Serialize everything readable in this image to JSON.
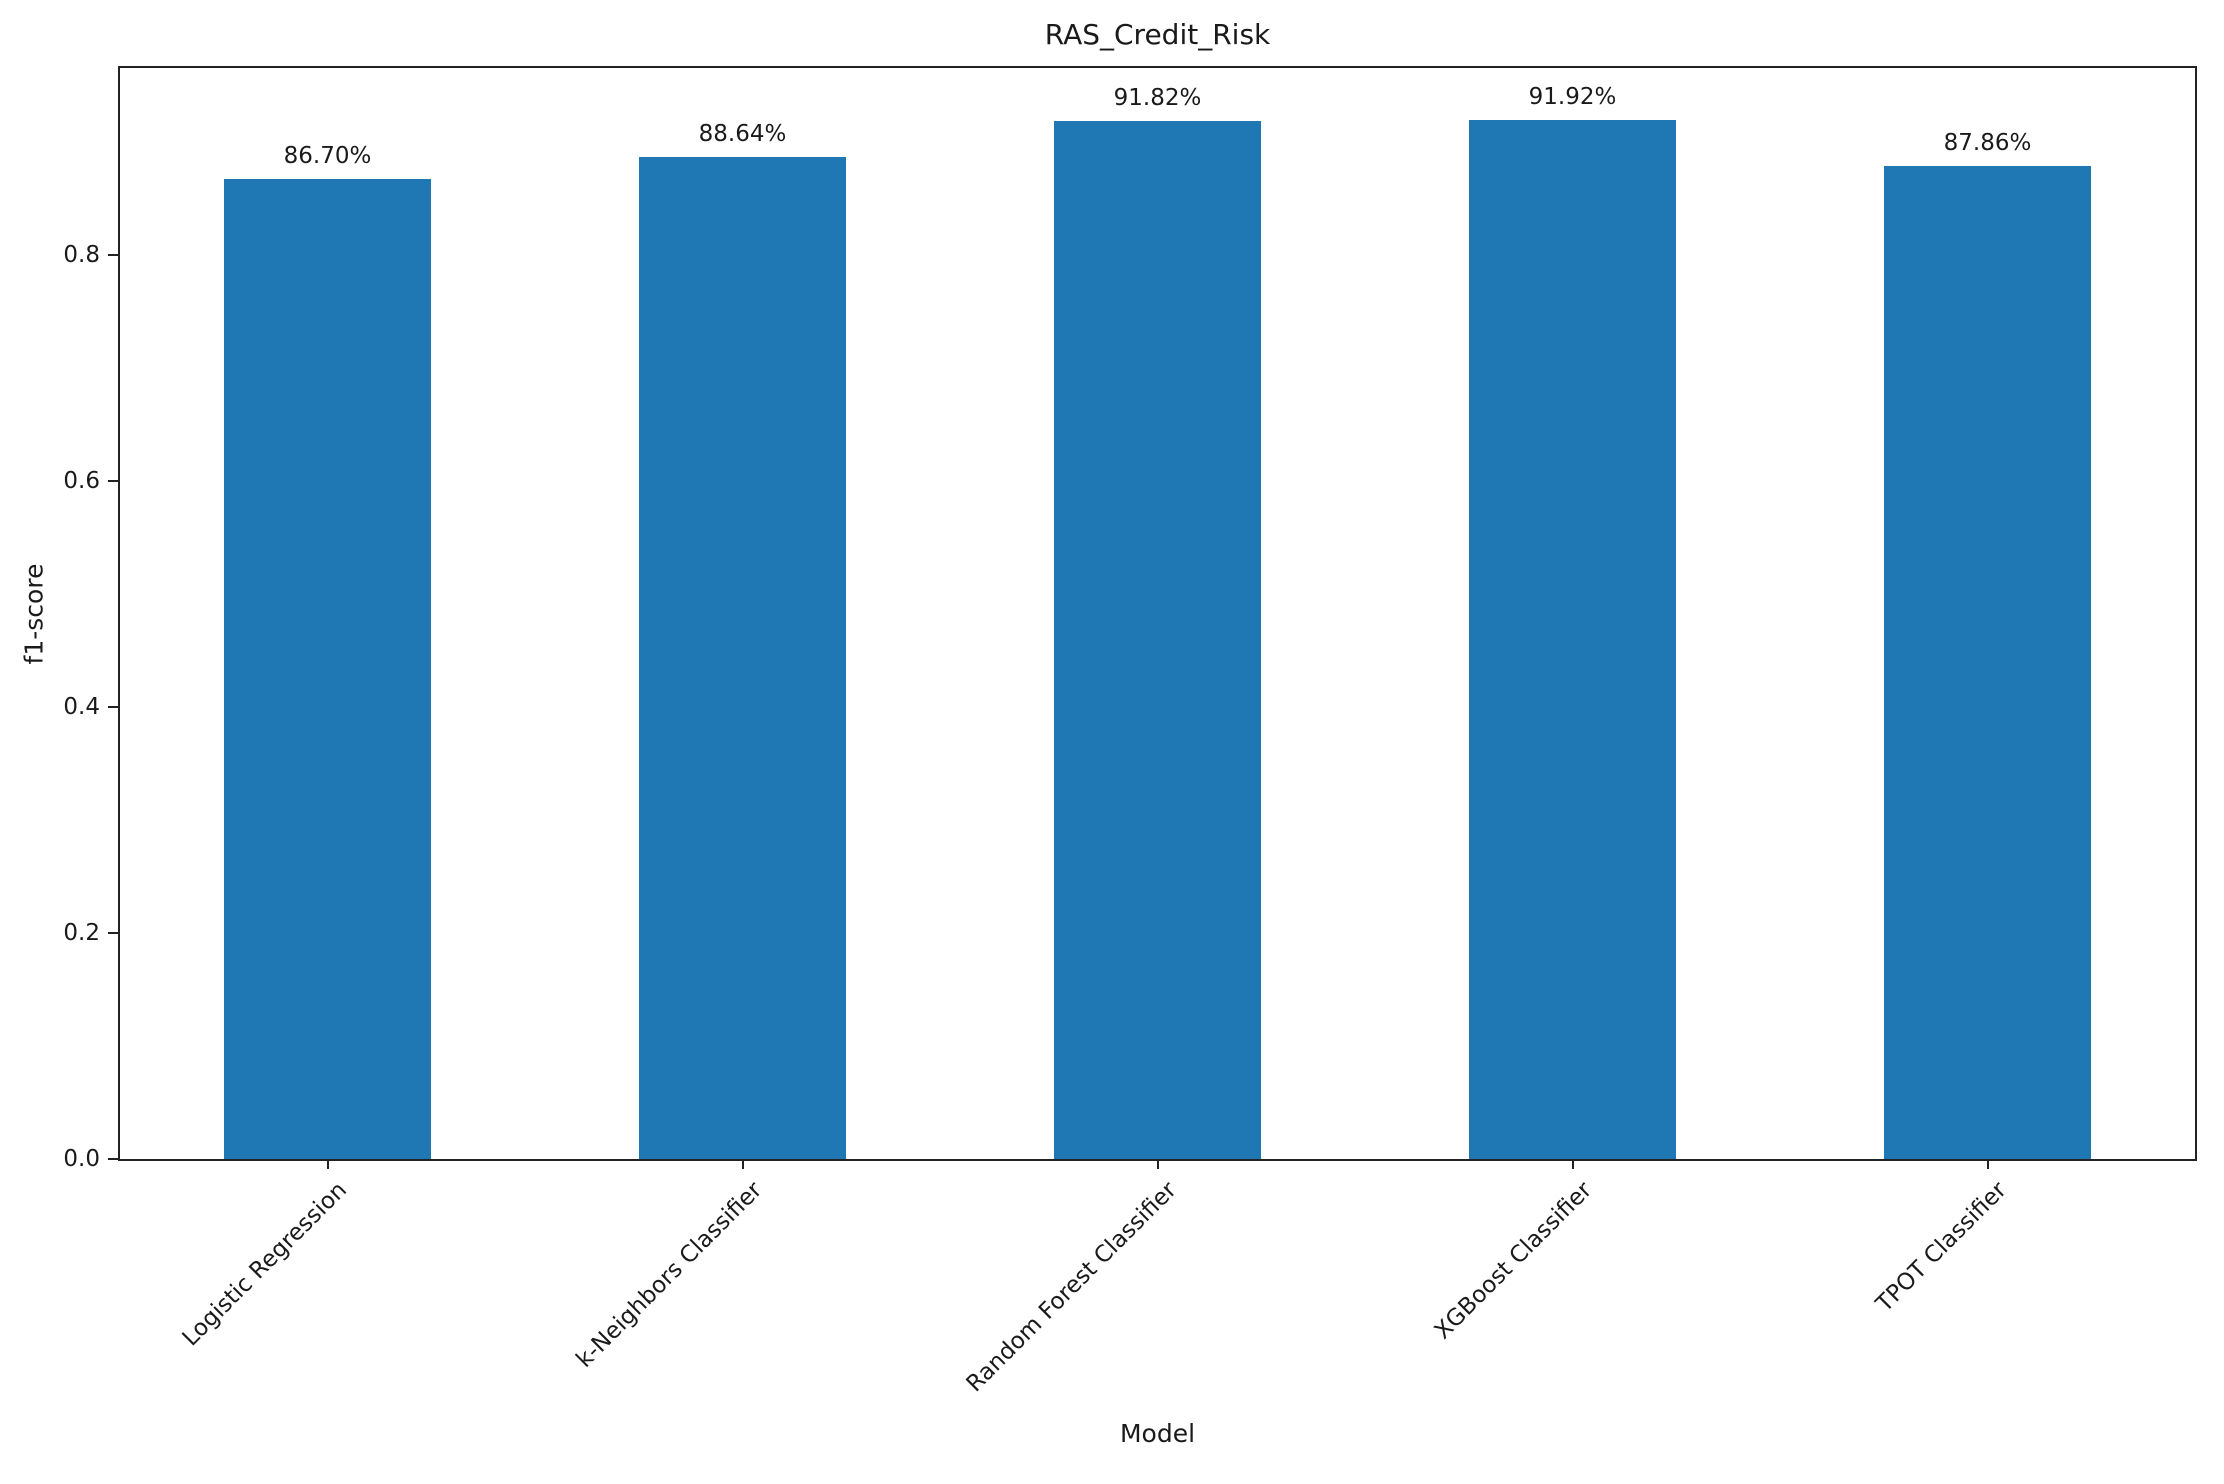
{
  "chart_data": {
    "type": "bar",
    "title": "RAS_Credit_Risk",
    "xlabel": "Model",
    "ylabel": "f1-score",
    "categories": [
      "Logistic Regression",
      "k-Neighbors Classifier",
      "Random Forest Classifier",
      "XGBoost Classifier",
      "TPOT Classifier"
    ],
    "values": [
      0.867,
      0.8864,
      0.9182,
      0.9192,
      0.8786
    ],
    "bar_labels": [
      "86.70%",
      "88.64%",
      "91.82%",
      "91.92%",
      "87.86%"
    ],
    "yticks": [
      "0.0",
      "0.2",
      "0.4",
      "0.6",
      "0.8"
    ],
    "ylim": [
      0,
      0.965
    ],
    "bar_width_data_units": 0.5,
    "bar_color": "#1f77b4",
    "axis_color": "#222222",
    "text_color": "#1a1a1a",
    "grid": false,
    "legend": "none",
    "x_tick_label_rotation_deg": 45
  }
}
